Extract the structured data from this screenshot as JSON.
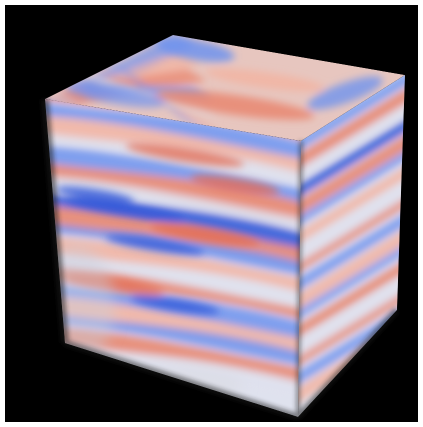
{
  "image": {
    "subject": "volume-rendered-cube",
    "background_color": "#000000",
    "border_color": "#ffffff",
    "palette": {
      "warm": "#e9826a",
      "warm_light": "#f3b3a0",
      "cool": "#6f93ee",
      "cool_dark": "#2f56d8",
      "neutral": "#dfe2ee"
    },
    "visible_faces": [
      "top-face",
      "left-front-face",
      "right-front-face"
    ]
  }
}
